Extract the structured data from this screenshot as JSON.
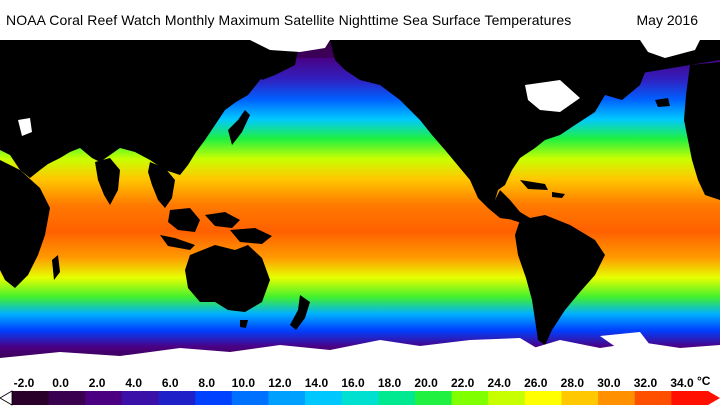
{
  "header": {
    "title": "NOAA Coral Reef Watch Monthly Maximum Satellite Nighttime Sea Surface Temperatures",
    "date": "May 2016"
  },
  "legend": {
    "unit": "°C",
    "ticks": [
      "-2.0",
      "0.0",
      "2.0",
      "4.0",
      "6.0",
      "8.0",
      "10.0",
      "12.0",
      "14.0",
      "16.0",
      "18.0",
      "20.0",
      "22.0",
      "24.0",
      "26.0",
      "28.0",
      "30.0",
      "32.0",
      "34.0"
    ],
    "colors": [
      "#2a002a",
      "#3a0050",
      "#4b0082",
      "#3a10a8",
      "#2020c8",
      "#0040ff",
      "#0070ff",
      "#00a0ff",
      "#00c8ff",
      "#00e0d0",
      "#00e890",
      "#20f040",
      "#80ff00",
      "#c8ff00",
      "#ffff00",
      "#ffc800",
      "#ff9000",
      "#ff5000",
      "#ff1000"
    ]
  },
  "map": {
    "land_color": "#000000",
    "ice_color": "#ffffff",
    "arctic_color": "#5a00a0",
    "tropics_color": "#ff8c00",
    "equator_warm_color": "#ff6a00",
    "subtropic_color": "#c8ff00",
    "mid_lat_color": "#20f040",
    "temperate_color": "#00c8ff",
    "cold_color": "#0040ff",
    "polar_color": "#4b0082"
  }
}
